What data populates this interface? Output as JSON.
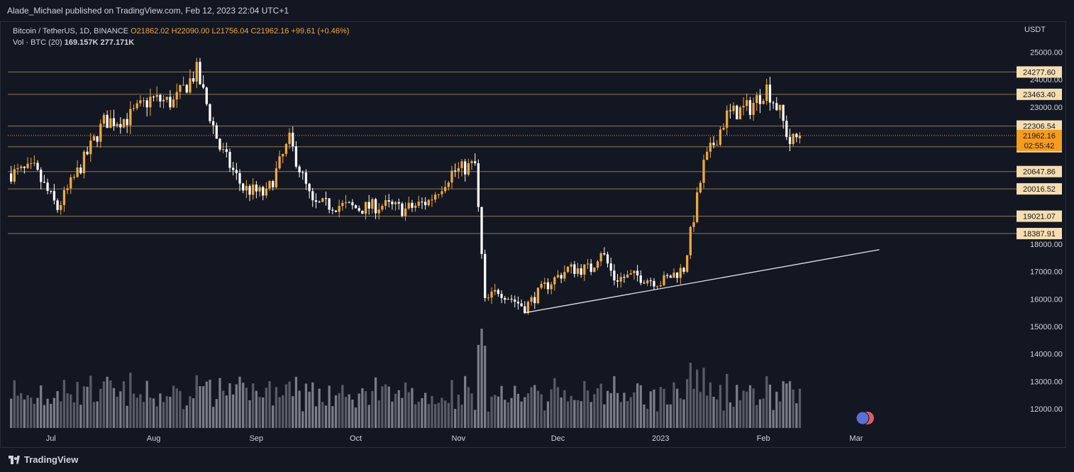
{
  "header": {
    "publisher_text": "Alade_Michael published on TradingView.com, Feb 12, 2023 22:04 UTC+1"
  },
  "legend": {
    "symbol": "Bitcoin / TetherUS, 1D, BINANCE",
    "open": "O21862.02",
    "high": "H22090.00",
    "low": "L21756.04",
    "close": "C21962.16",
    "change": "+99.61 (+0.46%)",
    "vol_label": "Vol · BTC (20)",
    "vol_value": "169.157K",
    "vol_ma": "277.171K"
  },
  "footer": {
    "brand": "TradingView"
  },
  "colors": {
    "background": "#131722",
    "up": "#f0a83c",
    "down": "#ffffff",
    "level_line": "#8a7a5a",
    "price_tag": "#f6deb0",
    "last_price": "#f59c1a",
    "axis_text": "#d1d4dc"
  },
  "chart_data": {
    "type": "candlestick",
    "title": "Bitcoin / TetherUS, 1D, BINANCE",
    "currency": "USDT",
    "ylim": [
      11300,
      26100
    ],
    "y_ticks": [
      "25000.00",
      "24000.00",
      "23000.00",
      "18000.00",
      "17000.00",
      "16000.00",
      "15000.00",
      "14000.00",
      "13000.00",
      "12000.00"
    ],
    "x_ticks": [
      "Jul",
      "Aug",
      "Sep",
      "Oct",
      "Nov",
      "Dec",
      "2023",
      "Feb",
      "Mar"
    ],
    "levels": [
      "24277.60",
      "23463.40",
      "22306.54",
      "21552.59",
      "20647.86",
      "20016.52",
      "19021.07",
      "18387.91"
    ],
    "last_price": {
      "value": "21962.16",
      "countdown": "02:55:42"
    },
    "trendline": [
      {
        "date": "2022-11-21",
        "price": 15500
      },
      {
        "date": "2023-03-08",
        "price": 17800
      }
    ],
    "x_ticks_dates": [
      "2022-07-01",
      "2022-08-01",
      "2022-09-01",
      "2022-10-01",
      "2022-11-01",
      "2022-12-01",
      "2023-01-01",
      "2023-02-01",
      "2023-03-01"
    ],
    "daily_close": [
      {
        "date": "2022-06-19",
        "close": 20580
      },
      {
        "date": "2022-06-26",
        "close": 20720
      },
      {
        "date": "2022-07-03",
        "close": 19300
      },
      {
        "date": "2022-07-10",
        "close": 20840
      },
      {
        "date": "2022-07-17",
        "close": 22470
      },
      {
        "date": "2022-07-24",
        "close": 22580
      },
      {
        "date": "2022-07-31",
        "close": 23290
      },
      {
        "date": "2022-08-07",
        "close": 23170
      },
      {
        "date": "2022-08-14",
        "close": 24300
      },
      {
        "date": "2022-08-21",
        "close": 21500
      },
      {
        "date": "2022-08-28",
        "close": 20040
      },
      {
        "date": "2022-09-04",
        "close": 19800
      },
      {
        "date": "2022-09-11",
        "close": 21780
      },
      {
        "date": "2022-09-18",
        "close": 19420
      },
      {
        "date": "2022-09-25",
        "close": 19430
      },
      {
        "date": "2022-10-02",
        "close": 19300
      },
      {
        "date": "2022-10-09",
        "close": 19420
      },
      {
        "date": "2022-10-16",
        "close": 19260
      },
      {
        "date": "2022-10-23",
        "close": 19570
      },
      {
        "date": "2022-10-30",
        "close": 20620
      },
      {
        "date": "2022-11-06",
        "close": 20900
      },
      {
        "date": "2022-11-09",
        "close": 15880
      },
      {
        "date": "2022-11-13",
        "close": 16330
      },
      {
        "date": "2022-11-21",
        "close": 15700
      },
      {
        "date": "2022-11-27",
        "close": 16450
      },
      {
        "date": "2022-12-04",
        "close": 17100
      },
      {
        "date": "2022-12-11",
        "close": 17100
      },
      {
        "date": "2022-12-14",
        "close": 17800
      },
      {
        "date": "2022-12-18",
        "close": 16750
      },
      {
        "date": "2022-12-25",
        "close": 16840
      },
      {
        "date": "2023-01-01",
        "close": 16610
      },
      {
        "date": "2023-01-08",
        "close": 17120
      },
      {
        "date": "2023-01-14",
        "close": 20900
      },
      {
        "date": "2023-01-21",
        "close": 22700
      },
      {
        "date": "2023-01-28",
        "close": 23000
      },
      {
        "date": "2023-02-02",
        "close": 23700
      },
      {
        "date": "2023-02-06",
        "close": 22800
      },
      {
        "date": "2023-02-09",
        "close": 21700
      },
      {
        "date": "2023-02-12",
        "close": 21962
      }
    ]
  }
}
